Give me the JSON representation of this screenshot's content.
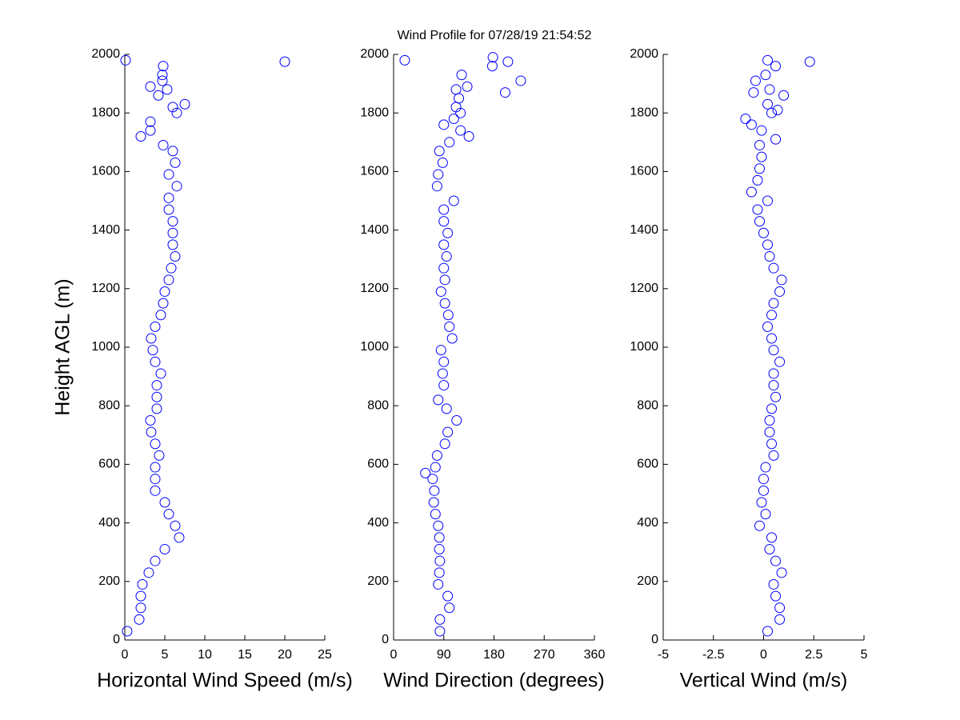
{
  "chart_data": [
    {
      "type": "scatter",
      "title": "Wind Profile for  07/28/19 21:54:52",
      "xlabel": "Horizontal Wind Speed (m/s)",
      "ylabel": "Height AGL (m)",
      "color": "#0000ff",
      "xlim": [
        0,
        25
      ],
      "xticks": [
        0,
        5,
        10,
        15,
        20,
        25
      ],
      "ylim": [
        0,
        2000
      ],
      "yticks": [
        0,
        200,
        400,
        600,
        800,
        1000,
        1200,
        1400,
        1600,
        1800,
        2000
      ],
      "x": [
        0.3,
        1.8,
        2,
        2,
        2.2,
        3,
        3.8,
        5,
        6.8,
        6.3,
        5.5,
        5,
        3.8,
        3.8,
        3.8,
        4.3,
        3.8,
        3.3,
        3.2,
        4,
        4,
        4,
        4.5,
        3.8,
        3.5,
        3.3,
        3.8,
        4.5,
        4.8,
        5,
        5.5,
        5.8,
        6.3,
        6,
        6,
        6,
        5.5,
        5.5,
        6.5,
        5.5,
        6.3,
        6,
        4.8,
        2,
        3.2,
        3.2,
        6.5,
        6,
        7.5,
        4.2,
        5.3,
        3.2,
        4.7,
        4.7,
        4.8,
        20,
        0.1
      ],
      "y": [
        30,
        70,
        110,
        150,
        190,
        230,
        270,
        310,
        350,
        390,
        430,
        470,
        510,
        550,
        590,
        630,
        670,
        710,
        750,
        790,
        830,
        870,
        910,
        950,
        990,
        1030,
        1070,
        1110,
        1150,
        1190,
        1230,
        1270,
        1310,
        1350,
        1390,
        1430,
        1470,
        1510,
        1550,
        1590,
        1630,
        1670,
        1690,
        1720,
        1740,
        1770,
        1800,
        1820,
        1830,
        1860,
        1880,
        1890,
        1910,
        1930,
        1960,
        1975,
        1980
      ]
    },
    {
      "type": "scatter",
      "xlabel": "Wind Direction (degrees)",
      "color": "#0000ff",
      "xlim": [
        0,
        360
      ],
      "xticks": [
        0,
        90,
        180,
        270,
        360
      ],
      "ylim": [
        0,
        2000
      ],
      "yticks": [
        0,
        200,
        400,
        600,
        800,
        1000,
        1200,
        1400,
        1600,
        1800,
        2000
      ],
      "x": [
        83,
        83,
        100,
        97,
        80,
        82,
        83,
        82,
        82,
        80,
        75,
        72,
        73,
        70,
        57,
        75,
        78,
        92,
        97,
        113,
        95,
        80,
        90,
        88,
        90,
        85,
        105,
        100,
        98,
        92,
        85,
        92,
        90,
        95,
        90,
        97,
        90,
        90,
        108,
        78,
        80,
        88,
        82,
        100,
        135,
        120,
        90,
        108,
        120,
        112,
        117,
        200,
        112,
        132,
        228,
        122,
        177,
        205,
        20,
        178
      ],
      "y": [
        30,
        70,
        110,
        150,
        190,
        230,
        270,
        310,
        350,
        390,
        430,
        470,
        510,
        550,
        570,
        590,
        630,
        670,
        710,
        750,
        790,
        820,
        870,
        910,
        950,
        990,
        1030,
        1070,
        1110,
        1150,
        1190,
        1230,
        1270,
        1310,
        1350,
        1390,
        1430,
        1470,
        1500,
        1550,
        1590,
        1630,
        1670,
        1700,
        1720,
        1740,
        1760,
        1780,
        1800,
        1820,
        1850,
        1870,
        1880,
        1890,
        1910,
        1930,
        1960,
        1975,
        1980,
        1990
      ]
    },
    {
      "type": "scatter",
      "xlabel": "Vertical Wind (m/s)",
      "color": "#0000ff",
      "xlim": [
        -5,
        5
      ],
      "xticks": [
        -5,
        -2.5,
        0,
        2.5,
        5
      ],
      "ylim": [
        0,
        2000
      ],
      "yticks": [
        0,
        200,
        400,
        600,
        800,
        1000,
        1200,
        1400,
        1600,
        1800,
        2000
      ],
      "x": [
        0.2,
        0.8,
        0.8,
        0.6,
        0.5,
        0.9,
        0.6,
        0.3,
        0.4,
        -0.2,
        0.1,
        -0.1,
        0,
        0,
        0.1,
        0.5,
        0.4,
        0.3,
        0.3,
        0.4,
        0.6,
        0.5,
        0.5,
        0.8,
        0.5,
        0.4,
        0.2,
        0.4,
        0.5,
        0.8,
        0.9,
        0.5,
        0.3,
        0.2,
        0,
        -0.2,
        -0.3,
        0.2,
        -0.6,
        -0.3,
        -0.2,
        -0.1,
        -0.2,
        0.6,
        -0.1,
        -0.6,
        -0.9,
        0.4,
        0.7,
        0.2,
        1,
        -0.5,
        0.3,
        -0.4,
        0.1,
        0.6,
        2.3,
        0.2
      ],
      "y": [
        30,
        70,
        110,
        150,
        190,
        230,
        270,
        310,
        350,
        390,
        430,
        470,
        510,
        550,
        590,
        630,
        670,
        710,
        750,
        790,
        830,
        870,
        910,
        950,
        990,
        1030,
        1070,
        1110,
        1150,
        1190,
        1230,
        1270,
        1310,
        1350,
        1390,
        1430,
        1470,
        1500,
        1530,
        1570,
        1610,
        1650,
        1690,
        1710,
        1740,
        1760,
        1780,
        1800,
        1810,
        1830,
        1860,
        1870,
        1880,
        1910,
        1930,
        1960,
        1975,
        1980
      ]
    }
  ]
}
